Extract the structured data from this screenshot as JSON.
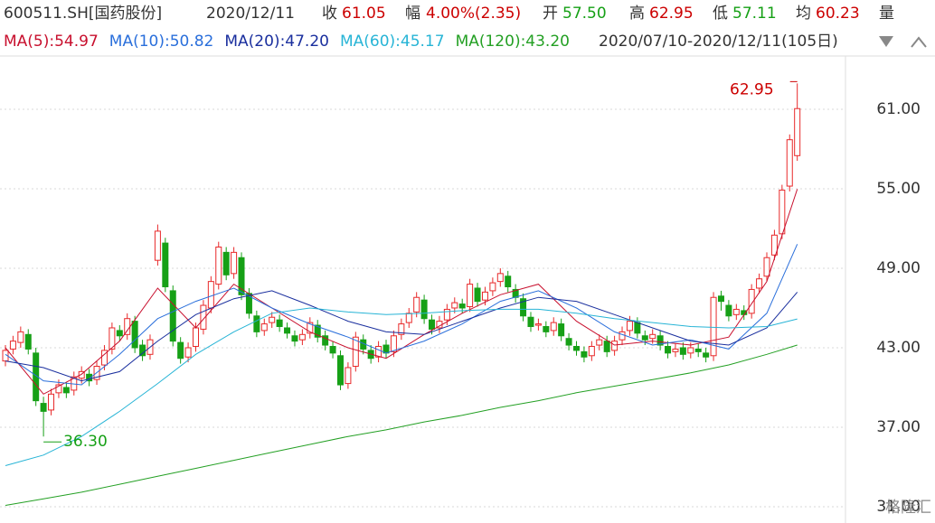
{
  "header": {
    "code": "600511.SH[国药股份]",
    "date": "2020/12/11",
    "close_label": "收",
    "close": "61.05",
    "change_label": "幅",
    "change": "4.00%(2.35)",
    "open_label": "开",
    "open": "57.50",
    "high_label": "高",
    "high": "62.95",
    "low_label": "低",
    "low": "57.11",
    "avg_label": "均",
    "avg": "60.23",
    "vol_label": "量",
    "ma_legend": [
      "MA(5):54.97",
      "MA(10):50.82",
      "MA(20):47.20",
      "MA(60):45.17",
      "MA(120):43.20"
    ],
    "range": "2020/07/10-2020/12/11(105日)"
  },
  "chart_data": {
    "type": "candlestick",
    "up_color": "#e8292a",
    "down_color": "#16a016",
    "open": [
      42.0,
      42.9,
      43.4,
      44.0,
      42.6,
      38.8,
      38.3,
      39.6,
      40.0,
      39.8,
      40.7,
      41.0,
      40.6,
      41.7,
      42.9,
      44.3,
      44.0,
      45.0,
      43.2,
      42.5,
      49.6,
      50.9,
      47.3,
      43.4,
      42.3,
      43.1,
      44.4,
      46.0,
      47.8,
      50.2,
      48.6,
      49.8,
      47.1,
      45.4,
      44.3,
      44.9,
      45.1,
      44.5,
      43.9,
      43.6,
      44.1,
      44.7,
      43.9,
      43.1,
      42.4,
      40.3,
      41.6,
      43.6,
      42.8,
      42.3,
      43.2,
      42.7,
      44.0,
      44.9,
      45.7,
      46.6,
      45.1,
      44.5,
      45.1,
      46.0,
      46.3,
      46.1,
      47.5,
      46.6,
      47.3,
      48.0,
      48.4,
      47.4,
      46.7,
      45.3,
      44.7,
      44.6,
      44.3,
      44.8,
      43.7,
      43.1,
      42.7,
      42.4,
      43.2,
      43.5,
      42.8,
      43.6,
      44.3,
      44.9,
      43.9,
      43.7,
      43.9,
      43.1,
      42.7,
      43.0,
      42.6,
      42.9,
      42.6,
      42.4,
      46.9,
      46.2,
      45.5,
      45.8,
      45.6,
      47.5,
      48.4,
      50.0,
      51.6,
      55.2,
      57.5
    ],
    "high": [
      43.2,
      43.9,
      44.6,
      44.4,
      43.0,
      39.3,
      39.9,
      40.6,
      40.4,
      41.2,
      41.6,
      41.4,
      42.0,
      43.2,
      44.9,
      44.7,
      45.6,
      45.4,
      43.6,
      44.0,
      52.3,
      51.3,
      47.7,
      43.8,
      43.4,
      44.9,
      46.6,
      48.4,
      51.0,
      50.6,
      50.6,
      50.2,
      47.5,
      45.8,
      45.2,
      45.7,
      45.5,
      44.9,
      44.3,
      44.4,
      45.3,
      45.1,
      44.3,
      43.5,
      42.8,
      41.9,
      44.2,
      44.0,
      43.2,
      43.5,
      43.6,
      44.3,
      45.2,
      46.0,
      47.2,
      47.0,
      45.5,
      45.4,
      46.3,
      46.8,
      46.7,
      48.2,
      47.9,
      47.6,
      48.3,
      49.0,
      48.8,
      47.8,
      47.1,
      45.7,
      45.2,
      45.0,
      45.3,
      45.2,
      44.1,
      43.5,
      43.1,
      43.5,
      44.0,
      43.9,
      43.9,
      44.6,
      45.4,
      45.3,
      44.3,
      44.4,
      44.3,
      43.5,
      43.3,
      43.4,
      43.4,
      43.3,
      43.0,
      47.2,
      47.3,
      46.6,
      46.3,
      46.2,
      47.8,
      48.6,
      50.2,
      51.9,
      55.3,
      59.1,
      62.95
    ],
    "low": [
      41.6,
      42.5,
      43.0,
      42.5,
      38.6,
      36.3,
      37.9,
      39.2,
      39.2,
      39.4,
      40.3,
      40.1,
      40.2,
      41.3,
      42.5,
      43.5,
      43.6,
      42.6,
      42.0,
      42.1,
      49.2,
      47.2,
      43.1,
      41.8,
      41.9,
      42.7,
      44.0,
      45.6,
      47.4,
      48.1,
      48.2,
      46.6,
      45.2,
      43.8,
      43.9,
      44.5,
      44.2,
      43.7,
      43.1,
      43.2,
      43.7,
      43.4,
      42.8,
      42.2,
      39.8,
      39.9,
      41.2,
      42.5,
      41.8,
      41.9,
      42.2,
      42.3,
      43.6,
      44.5,
      45.3,
      44.8,
      44.0,
      44.1,
      44.7,
      45.6,
      45.6,
      45.7,
      46.1,
      46.2,
      46.9,
      47.6,
      47.2,
      46.4,
      45.0,
      44.2,
      44.3,
      43.8,
      43.9,
      43.5,
      42.8,
      42.4,
      41.9,
      42.0,
      42.8,
      42.3,
      42.4,
      43.2,
      43.9,
      43.7,
      43.2,
      43.3,
      42.8,
      42.2,
      42.3,
      42.1,
      42.2,
      42.3,
      41.9,
      42.0,
      45.8,
      45.0,
      45.1,
      45.1,
      45.2,
      47.1,
      48.0,
      49.6,
      51.2,
      54.8,
      57.11
    ],
    "close": [
      42.8,
      43.5,
      44.2,
      42.9,
      39.0,
      38.2,
      39.5,
      40.2,
      39.6,
      40.8,
      41.2,
      40.5,
      41.6,
      42.8,
      44.5,
      43.9,
      45.2,
      43.0,
      42.4,
      43.6,
      51.8,
      47.6,
      43.5,
      42.2,
      43.0,
      44.5,
      46.2,
      48.0,
      50.6,
      48.5,
      50.2,
      47.0,
      45.6,
      44.2,
      44.8,
      45.3,
      44.6,
      44.1,
      43.5,
      44.0,
      44.9,
      43.8,
      43.2,
      42.6,
      40.2,
      41.5,
      43.8,
      42.9,
      42.2,
      43.1,
      42.6,
      43.9,
      44.8,
      45.6,
      46.8,
      45.2,
      44.4,
      45.0,
      45.9,
      46.4,
      46.0,
      47.8,
      46.5,
      47.2,
      47.9,
      48.6,
      47.6,
      46.8,
      45.4,
      44.6,
      44.8,
      44.2,
      44.9,
      43.9,
      43.2,
      42.8,
      42.3,
      43.1,
      43.6,
      42.7,
      43.5,
      44.2,
      45.0,
      44.1,
      43.6,
      44.0,
      43.2,
      42.6,
      42.9,
      42.5,
      43.0,
      42.7,
      42.3,
      46.8,
      46.5,
      45.4,
      45.9,
      45.5,
      47.4,
      48.2,
      49.8,
      51.5,
      54.9,
      58.7,
      61.05
    ],
    "ma_x": [
      0,
      5,
      10,
      15,
      20,
      25,
      30,
      35,
      40,
      45,
      50,
      55,
      60,
      65,
      70,
      75,
      80,
      85,
      90,
      95,
      100,
      104
    ],
    "series": [
      {
        "name": "MA(5)",
        "color": "#c8102e",
        "values": [
          43.0,
          39.5,
          41.0,
          43.5,
          47.5,
          44.5,
          47.8,
          46.0,
          44.2,
          43.0,
          42.2,
          44.0,
          45.6,
          47.0,
          47.8,
          45.0,
          43.2,
          43.5,
          43.2,
          43.8,
          48.0,
          54.97
        ]
      },
      {
        "name": "MA(10)",
        "color": "#2a6fdb",
        "values": [
          42.5,
          40.5,
          40.2,
          42.5,
          45.2,
          46.5,
          47.5,
          46.0,
          44.8,
          43.8,
          42.6,
          43.5,
          44.8,
          46.5,
          47.3,
          46.0,
          44.2,
          43.2,
          43.6,
          42.9,
          45.6,
          50.82
        ]
      },
      {
        "name": "MA(20)",
        "color": "#1a2f9e",
        "values": [
          42.0,
          41.5,
          40.5,
          41.2,
          43.5,
          45.5,
          46.7,
          47.3,
          46.2,
          45.0,
          44.2,
          44.0,
          45.0,
          46.0,
          46.8,
          46.5,
          45.5,
          44.5,
          43.5,
          43.2,
          44.5,
          47.2
        ]
      },
      {
        "name": "MA(60)",
        "color": "#27b4d6",
        "values": [
          34.1,
          34.9,
          36.3,
          38.2,
          40.3,
          42.5,
          44.2,
          45.6,
          46.0,
          45.7,
          45.5,
          45.6,
          45.8,
          45.9,
          45.9,
          45.6,
          45.2,
          44.9,
          44.6,
          44.5,
          44.6,
          45.17
        ]
      },
      {
        "name": "MA(120)",
        "color": "#24a024",
        "values": [
          31.1,
          31.6,
          32.1,
          32.7,
          33.3,
          33.9,
          34.5,
          35.1,
          35.7,
          36.3,
          36.8,
          37.4,
          37.9,
          38.5,
          39.0,
          39.6,
          40.1,
          40.6,
          41.1,
          41.7,
          42.5,
          43.2
        ]
      }
    ],
    "annotations": [
      {
        "label": "62.95",
        "index": 104,
        "at": "high"
      },
      {
        "label": "36.30",
        "index": 5,
        "at": "low"
      }
    ],
    "ylim": [
      29.84,
      65.02
    ],
    "yticks": [
      {
        "value": 31,
        "label": "31.00"
      },
      {
        "value": 37,
        "label": "37.00"
      },
      {
        "value": 43,
        "label": "43.00"
      },
      {
        "value": 49,
        "label": "49.00"
      },
      {
        "value": 55,
        "label": "55.00"
      },
      {
        "value": 61,
        "label": "61.00"
      }
    ],
    "grid": true,
    "watermark": "格隆汇"
  }
}
